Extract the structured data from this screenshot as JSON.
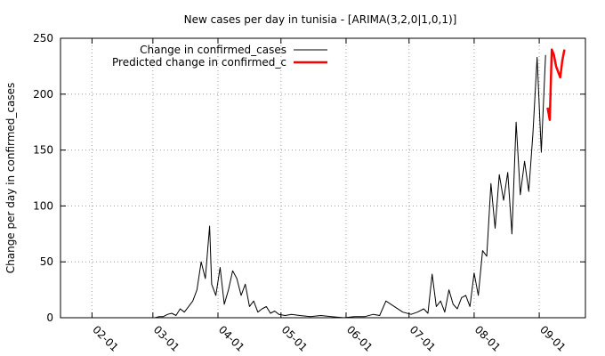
{
  "chart_data": {
    "type": "line",
    "title": "New cases per day in tunisia -  [ARIMA(3,2,0|1,0,1)]",
    "xlabel": "",
    "ylabel": "Change per day in confirmed_cases",
    "ylim": [
      0,
      250
    ],
    "yticks": [
      0,
      50,
      100,
      150,
      200,
      250
    ],
    "xlim": [
      "2020-01-17",
      "2020-09-23"
    ],
    "xticks": [
      "02-01",
      "03-01",
      "04-01",
      "05-01",
      "06-01",
      "07-01",
      "08-01",
      "09-01"
    ],
    "xtick_dates": [
      "2020-02-01",
      "2020-03-01",
      "2020-04-01",
      "2020-05-01",
      "2020-06-01",
      "2020-07-01",
      "2020-08-01",
      "2020-09-01"
    ],
    "grid": true,
    "legend_position": "top-left",
    "series": [
      {
        "name": "Change in confirmed_cases",
        "color": "#000000",
        "x": [
          "2020-03-02",
          "2020-03-04",
          "2020-03-06",
          "2020-03-08",
          "2020-03-10",
          "2020-03-12",
          "2020-03-14",
          "2020-03-16",
          "2020-03-18",
          "2020-03-20",
          "2020-03-22",
          "2020-03-24",
          "2020-03-26",
          "2020-03-28",
          "2020-03-29",
          "2020-03-31",
          "2020-04-02",
          "2020-04-04",
          "2020-04-06",
          "2020-04-08",
          "2020-04-10",
          "2020-04-12",
          "2020-04-14",
          "2020-04-16",
          "2020-04-18",
          "2020-04-20",
          "2020-04-22",
          "2020-04-24",
          "2020-04-26",
          "2020-04-28",
          "2020-04-30",
          "2020-05-03",
          "2020-05-06",
          "2020-05-10",
          "2020-05-15",
          "2020-05-20",
          "2020-05-25",
          "2020-05-31",
          "2020-06-05",
          "2020-06-10",
          "2020-06-14",
          "2020-06-17",
          "2020-06-20",
          "2020-06-24",
          "2020-06-28",
          "2020-07-02",
          "2020-07-05",
          "2020-07-08",
          "2020-07-10",
          "2020-07-12",
          "2020-07-14",
          "2020-07-16",
          "2020-07-18",
          "2020-07-20",
          "2020-07-22",
          "2020-07-24",
          "2020-07-26",
          "2020-07-28",
          "2020-07-30",
          "2020-08-01",
          "2020-08-03",
          "2020-08-05",
          "2020-08-07",
          "2020-08-09",
          "2020-08-11",
          "2020-08-13",
          "2020-08-15",
          "2020-08-17",
          "2020-08-19",
          "2020-08-21",
          "2020-08-23",
          "2020-08-25",
          "2020-08-27",
          "2020-08-29",
          "2020-08-31",
          "2020-09-02",
          "2020-09-04"
        ],
        "values": [
          0,
          1,
          1,
          3,
          4,
          2,
          8,
          5,
          10,
          15,
          25,
          50,
          35,
          82,
          30,
          20,
          45,
          12,
          25,
          42,
          35,
          20,
          30,
          10,
          15,
          5,
          8,
          10,
          4,
          6,
          3,
          2,
          3,
          2,
          1,
          2,
          1,
          0,
          1,
          1,
          3,
          2,
          15,
          10,
          5,
          3,
          5,
          8,
          4,
          39,
          10,
          15,
          5,
          25,
          12,
          8,
          18,
          20,
          10,
          40,
          20,
          60,
          55,
          120,
          80,
          128,
          105,
          130,
          75,
          175,
          110,
          140,
          113,
          165,
          233,
          148,
          235
        ]
      },
      {
        "name": "Predicted change in confirmed_c",
        "color": "#ff0000",
        "x": [
          "2020-09-05",
          "2020-09-06",
          "2020-09-07",
          "2020-09-08",
          "2020-09-09",
          "2020-09-10",
          "2020-09-11",
          "2020-09-12",
          "2020-09-13"
        ],
        "values": [
          188,
          177,
          240,
          235,
          225,
          220,
          215,
          230,
          240
        ]
      }
    ]
  }
}
